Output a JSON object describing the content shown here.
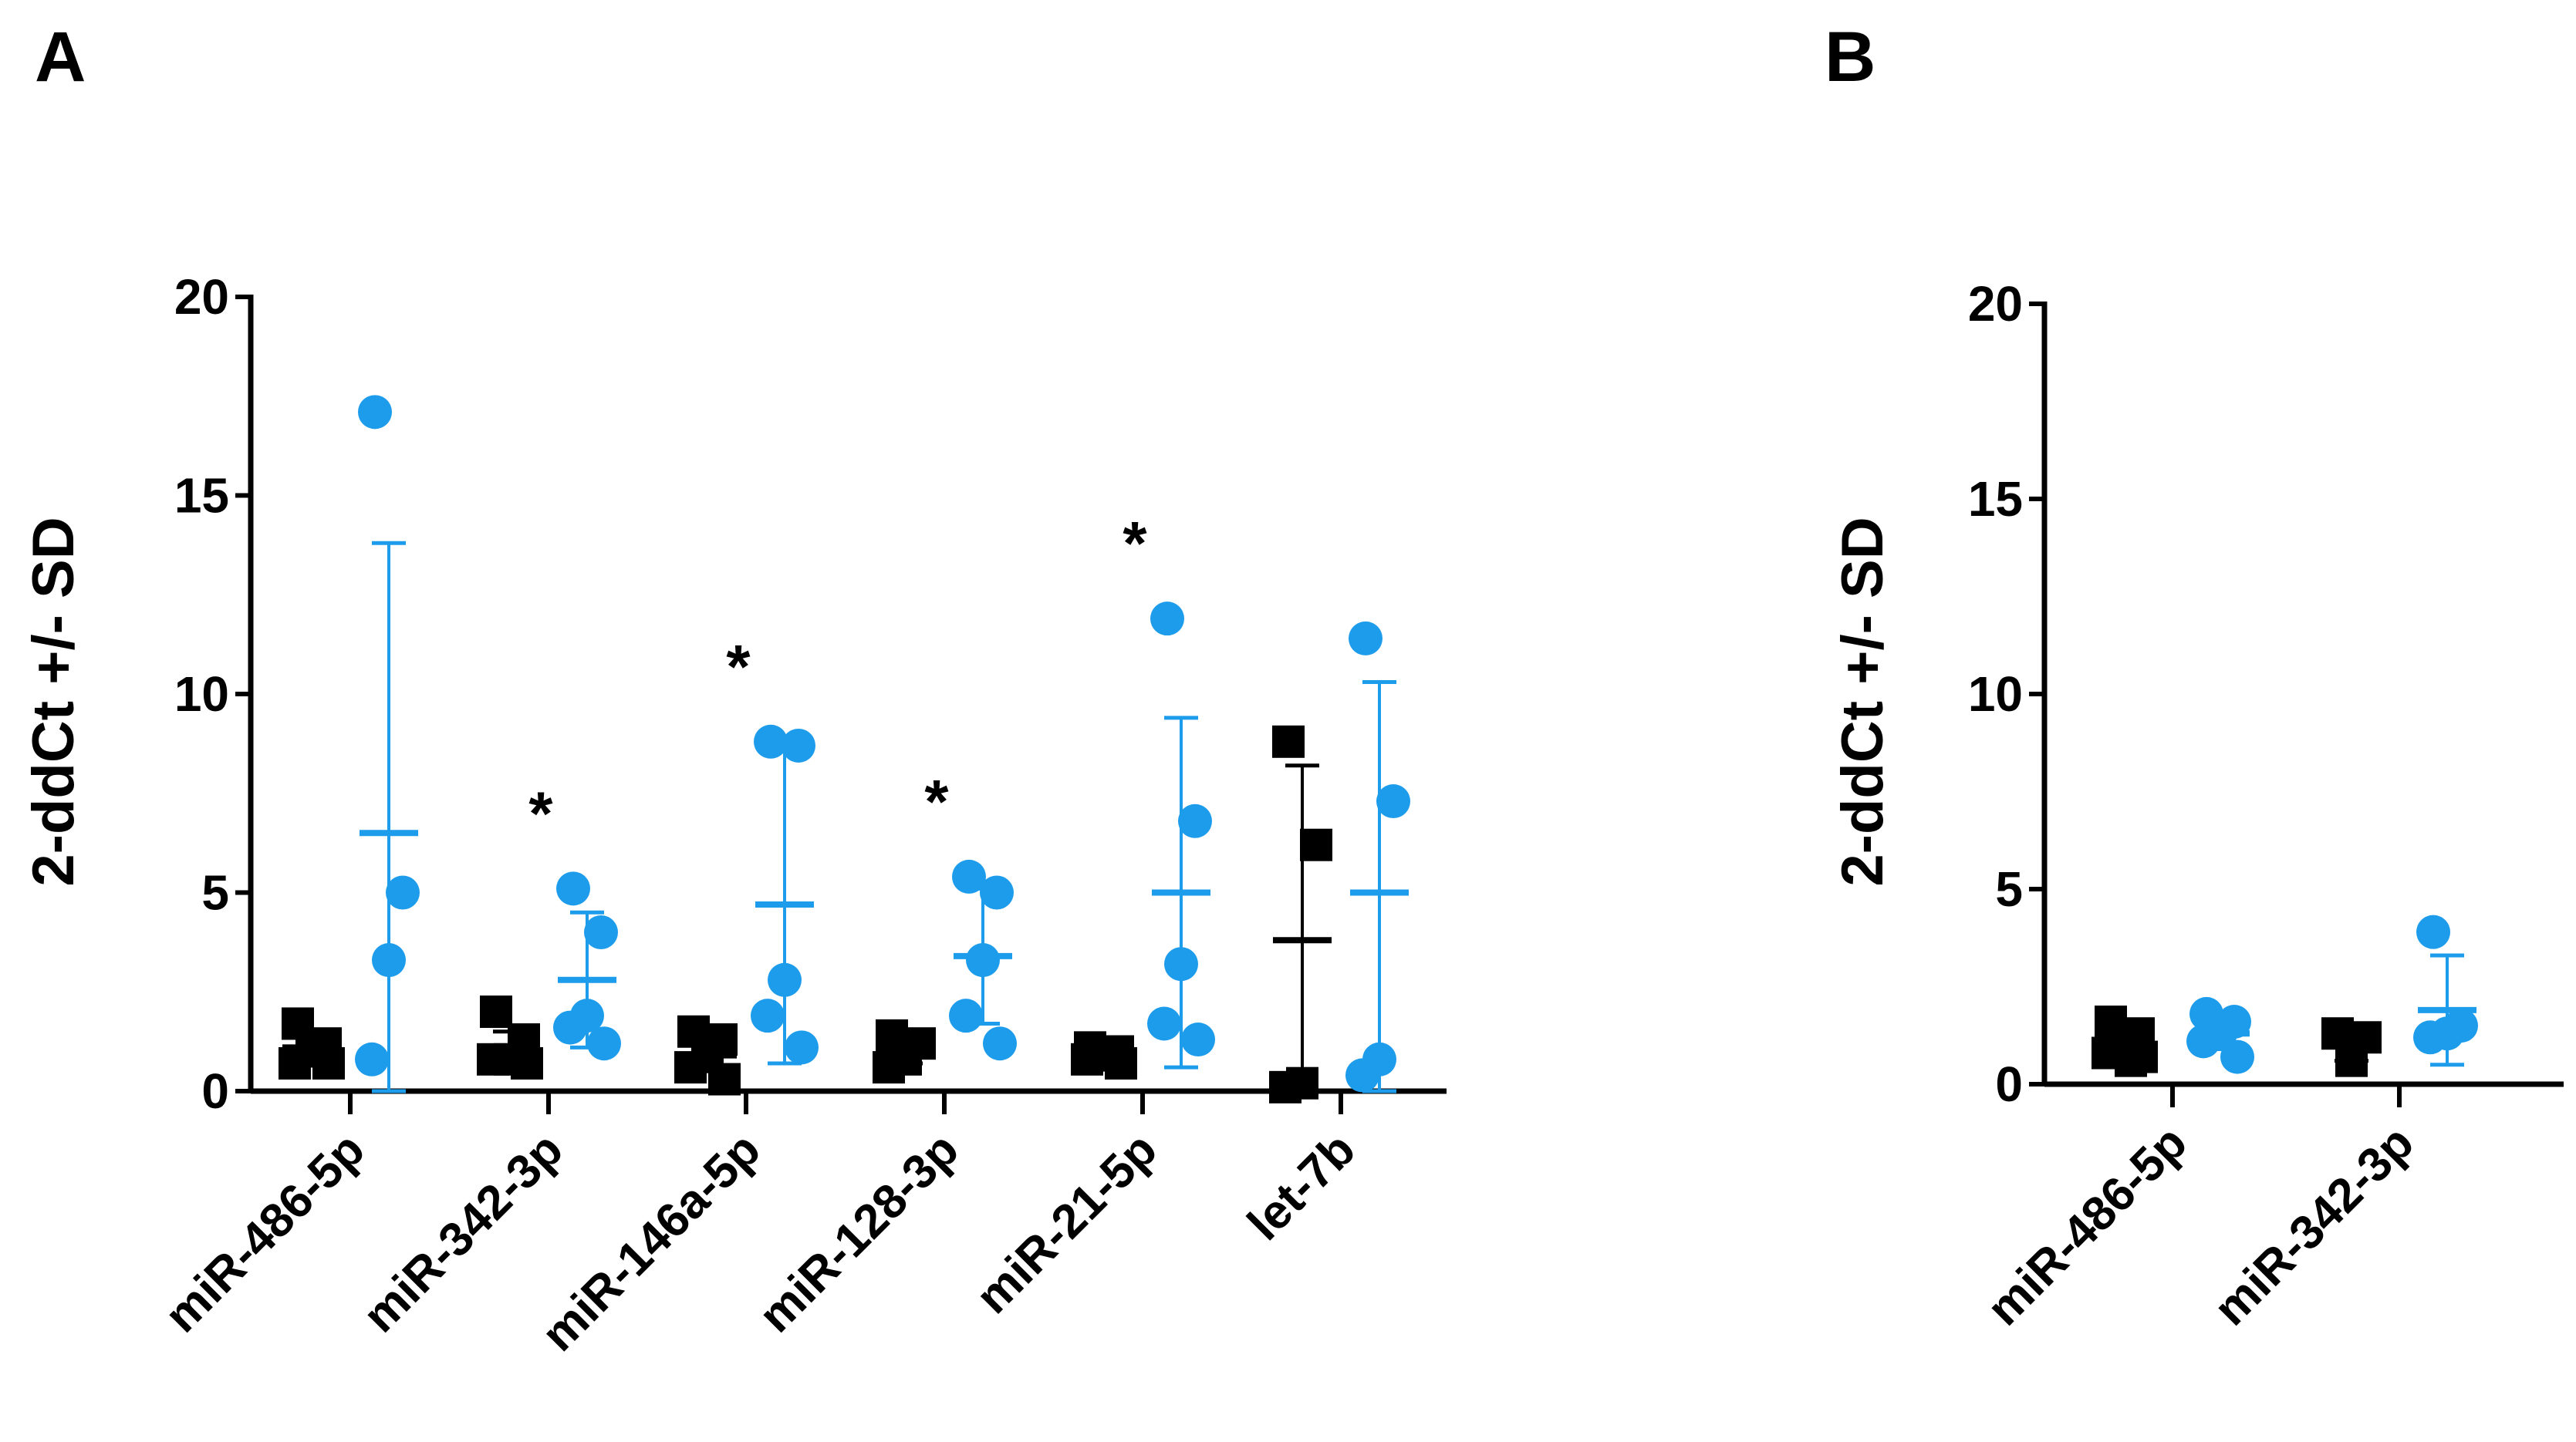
{
  "colors": {
    "group1": "#000000",
    "group2": "#1e9cec"
  },
  "chart_data": [
    {
      "panel_label": "A",
      "type": "scatter",
      "ylabel": "2-ddCt +/- SD",
      "ylim": [
        0,
        20
      ],
      "yticks": [
        "0",
        "5",
        "10",
        "15",
        "20"
      ],
      "categories": [
        "miR-486-5p",
        "miR-342-3p",
        "miR-146a-5p",
        "miR-128-3p",
        "miR-21-5p",
        "let-7b"
      ],
      "significance": [
        "",
        "*",
        "*",
        "*",
        "*",
        ""
      ],
      "series": [
        {
          "marker": "square",
          "points": [
            [
              1.7,
              1.2,
              1.0,
              0.7,
              0.7
            ],
            [
              2.0,
              1.3,
              0.8,
              0.8,
              0.7
            ],
            [
              1.5,
              1.3,
              1.0,
              0.6,
              0.3
            ],
            [
              1.4,
              1.2,
              0.8,
              0.6
            ],
            [
              1.1,
              1.0,
              0.9,
              0.8,
              0.7
            ],
            [
              8.8,
              6.2,
              0.2,
              0.1
            ]
          ],
          "mean": [
            1.1,
            1.1,
            0.9,
            1.0,
            0.9,
            3.8
          ],
          "sd": [
            0.4,
            0.4,
            0.4,
            0.3,
            0.1,
            4.4
          ]
        },
        {
          "marker": "circle",
          "points": [
            [
              17.1,
              5.0,
              3.3,
              0.8
            ],
            [
              5.1,
              4.0,
              1.9,
              1.6,
              1.2
            ],
            [
              8.8,
              8.7,
              2.8,
              1.9,
              1.1
            ],
            [
              5.4,
              5.0,
              3.3,
              1.9,
              1.2
            ],
            [
              11.9,
              6.8,
              3.2,
              1.7,
              1.3
            ],
            [
              11.4,
              7.3,
              0.8,
              0.4
            ]
          ],
          "mean": [
            6.5,
            2.8,
            4.7,
            3.4,
            5.0,
            5.0
          ],
          "sd": [
            7.3,
            1.7,
            4.0,
            1.7,
            4.4,
            5.3
          ]
        }
      ]
    },
    {
      "panel_label": "B",
      "type": "scatter",
      "ylabel": "2-ddCt +/- SD",
      "ylim": [
        0,
        20
      ],
      "yticks": [
        "0",
        "5",
        "10",
        "15",
        "20"
      ],
      "categories": [
        "miR-486-5p",
        "miR-342-3p"
      ],
      "significance": [
        "",
        ""
      ],
      "series": [
        {
          "marker": "square",
          "points": [
            [
              1.6,
              1.3,
              1.0,
              0.8,
              0.7,
              0.6
            ],
            [
              1.3,
              1.2,
              0.6
            ]
          ],
          "mean": [
            1.0,
            1.0
          ],
          "sd": [
            0.4,
            0.4
          ]
        },
        {
          "marker": "circle",
          "points": [
            [
              1.8,
              1.6,
              1.3,
              1.1,
              0.7
            ],
            [
              3.9,
              1.5,
              1.3,
              1.2
            ]
          ],
          "mean": [
            1.3,
            1.9
          ],
          "sd": [
            0.4,
            1.4
          ]
        }
      ]
    }
  ]
}
